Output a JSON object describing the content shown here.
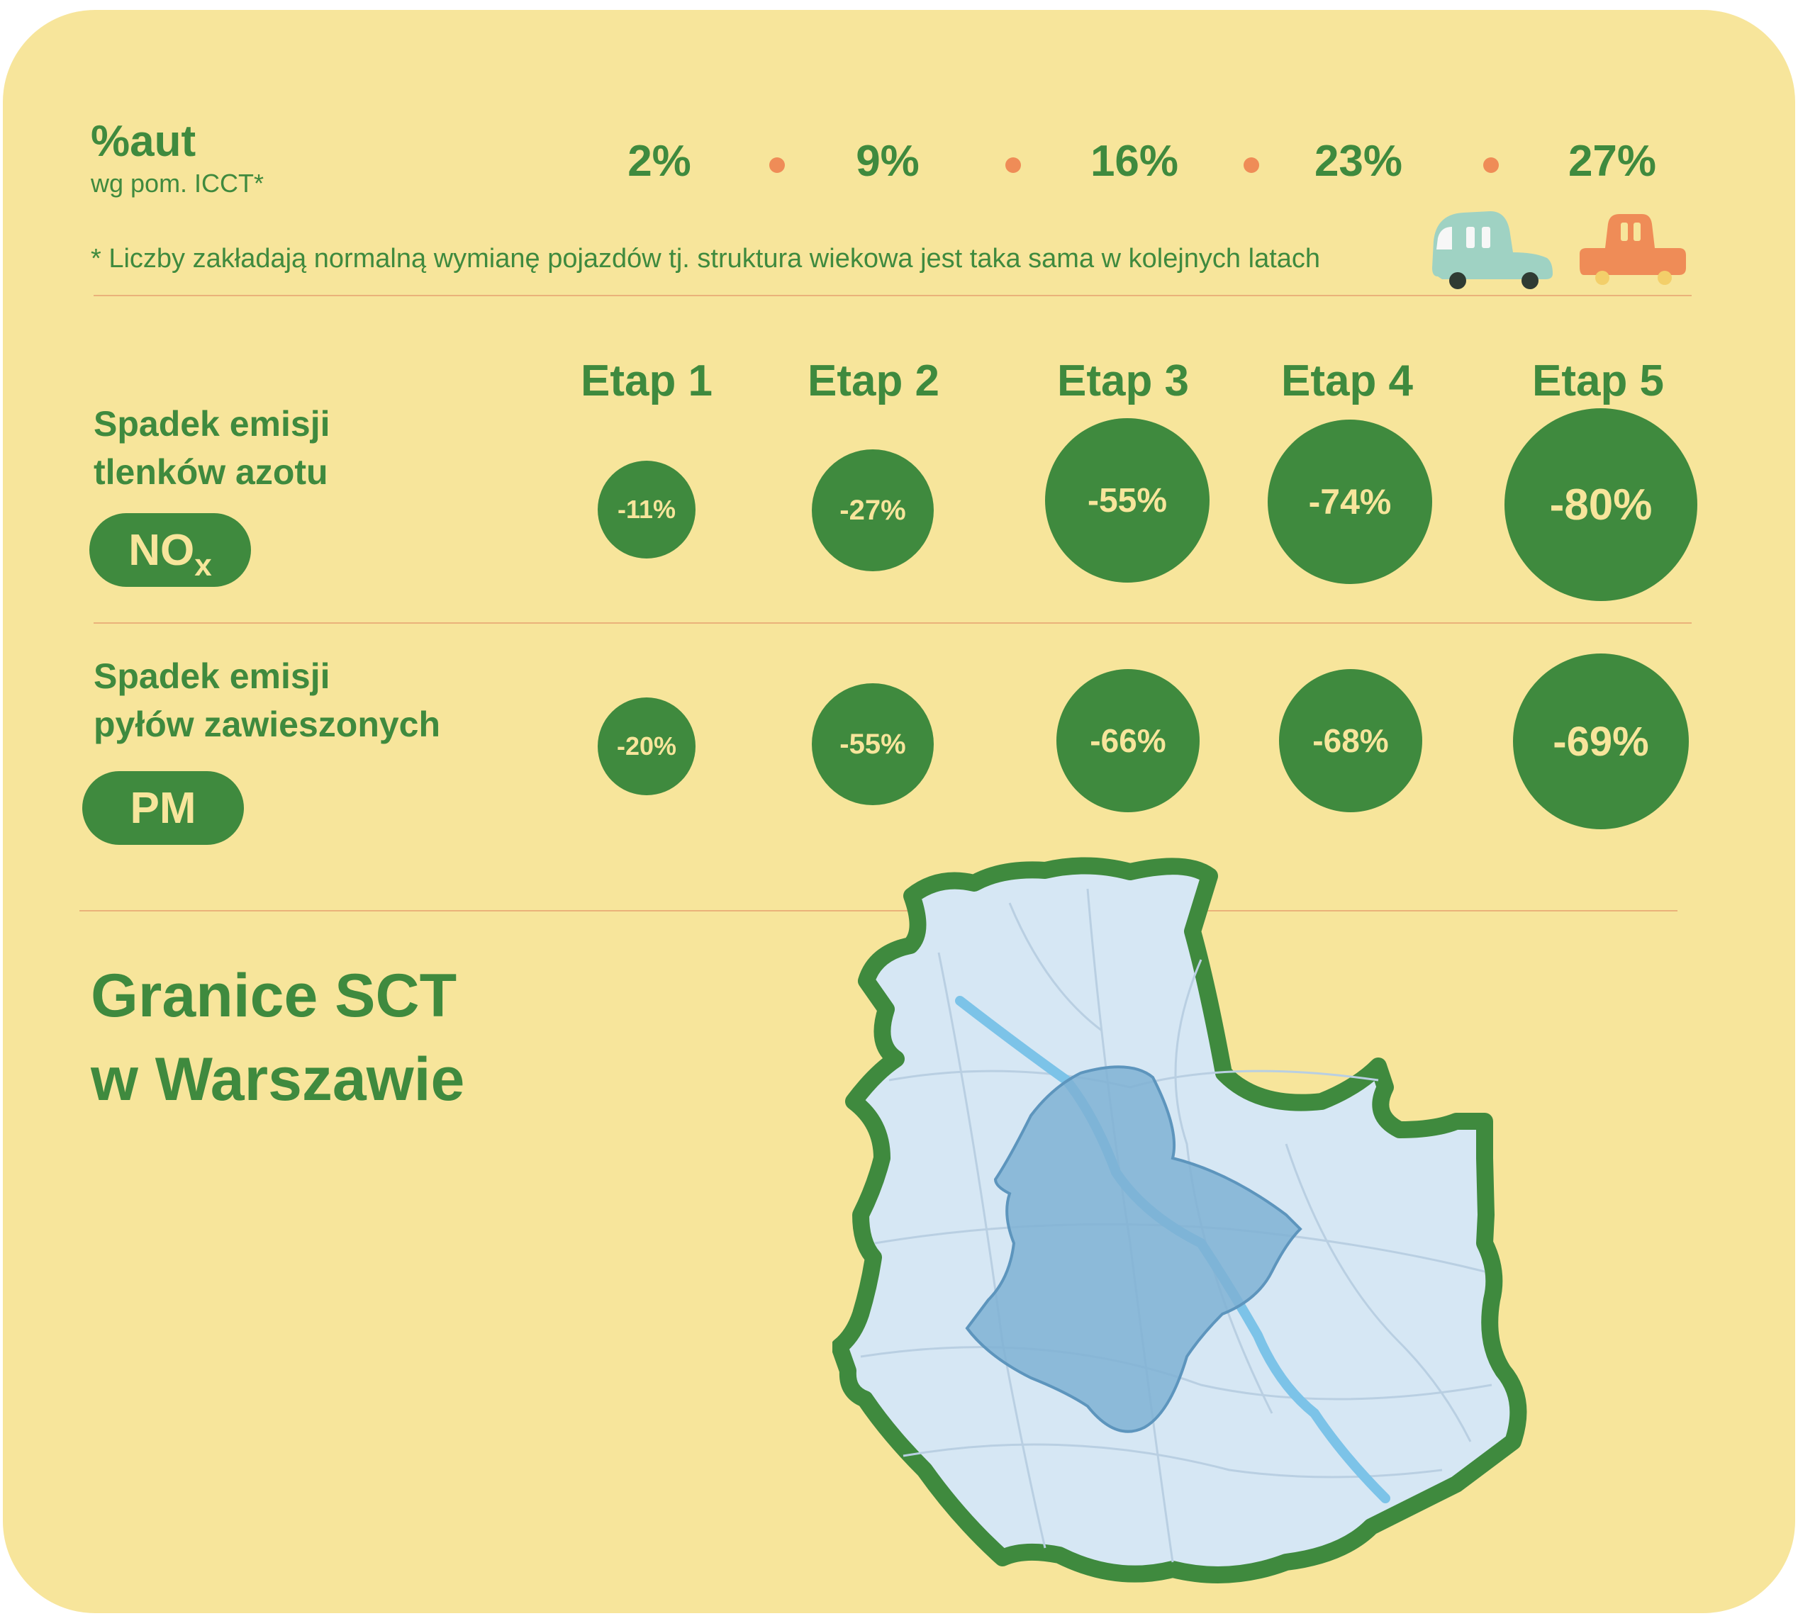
{
  "header": {
    "pct_label": "%aut",
    "pct_sub": "wg pom. ICCT*",
    "percentages": [
      "2%",
      "9%",
      "16%",
      "23%",
      "27%"
    ],
    "footnote": "*  Liczby zakładają normalną wymianę pojazdów tj. struktura wiekowa jest taka sama w kolejnych latach"
  },
  "stages": [
    "Etap 1",
    "Etap 2",
    "Etap 3",
    "Etap 4",
    "Etap 5"
  ],
  "nox": {
    "label_line1": "Spadek emisji",
    "label_line2": "tlenków azotu",
    "badge": "NO",
    "badge_sub": "x",
    "values": [
      "-11%",
      "-27%",
      "-55%",
      "-74%",
      "-80%"
    ]
  },
  "pm": {
    "label_line1": "Spadek emisji",
    "label_line2": "pyłów zawieszonych",
    "badge": "PM",
    "values": [
      "-20%",
      "-55%",
      "-66%",
      "-68%",
      "-69%"
    ]
  },
  "map_section": {
    "title_line1": "Granice SCT",
    "title_line2": "w Warszawie"
  },
  "colors": {
    "background": "#f7e59b",
    "green": "#3f8a3e",
    "accent_orange": "#ef8c57",
    "map_fill": "#d6e7f4",
    "zone_fill": "#7fb2d3",
    "river": "#7cc3e8"
  },
  "icons": [
    "teal-car-icon",
    "orange-car-icon"
  ]
}
